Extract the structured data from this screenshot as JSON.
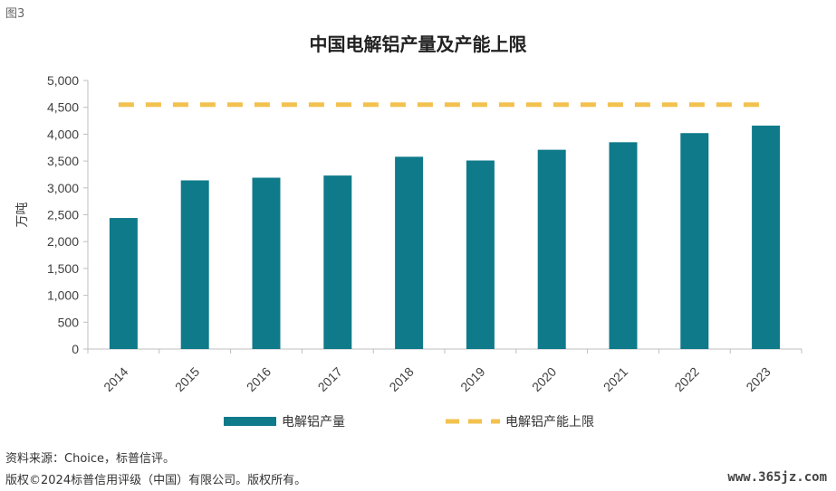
{
  "figure_label": "图3",
  "footer": {
    "source": "资料来源：Choice，标普信评。",
    "copyright": "版权©2024标普信用评级（中国）有限公司。版权所有。"
  },
  "watermark": "www.365jz.com",
  "colors": {
    "bar": "#0f7a8a",
    "line": "#f2c14e"
  },
  "chart_data": {
    "type": "bar",
    "title": "中国电解铝产量及产能上限",
    "ylabel": "万吨",
    "xlabel": "",
    "ylim": [
      0,
      5000
    ],
    "yticks": [
      0,
      500,
      1000,
      1500,
      2000,
      2500,
      3000,
      3500,
      4000,
      4500,
      5000
    ],
    "ytick_labels": [
      "0",
      "500",
      "1,000",
      "1,500",
      "2,000",
      "2,500",
      "3,000",
      "3,500",
      "4,000",
      "4,500",
      "5,000"
    ],
    "categories": [
      "2014",
      "2015",
      "2016",
      "2017",
      "2018",
      "2019",
      "2020",
      "2021",
      "2022",
      "2023"
    ],
    "series": [
      {
        "name": "电解铝产量",
        "kind": "bar",
        "values": [
          2440,
          3140,
          3190,
          3230,
          3580,
          3510,
          3710,
          3850,
          4020,
          4160
        ]
      },
      {
        "name": "电解铝产能上限",
        "kind": "dashed-line",
        "values": [
          4550,
          4550,
          4550,
          4550,
          4550,
          4550,
          4550,
          4550,
          4550,
          4550
        ]
      }
    ],
    "grid": false,
    "legend_position": "bottom"
  }
}
